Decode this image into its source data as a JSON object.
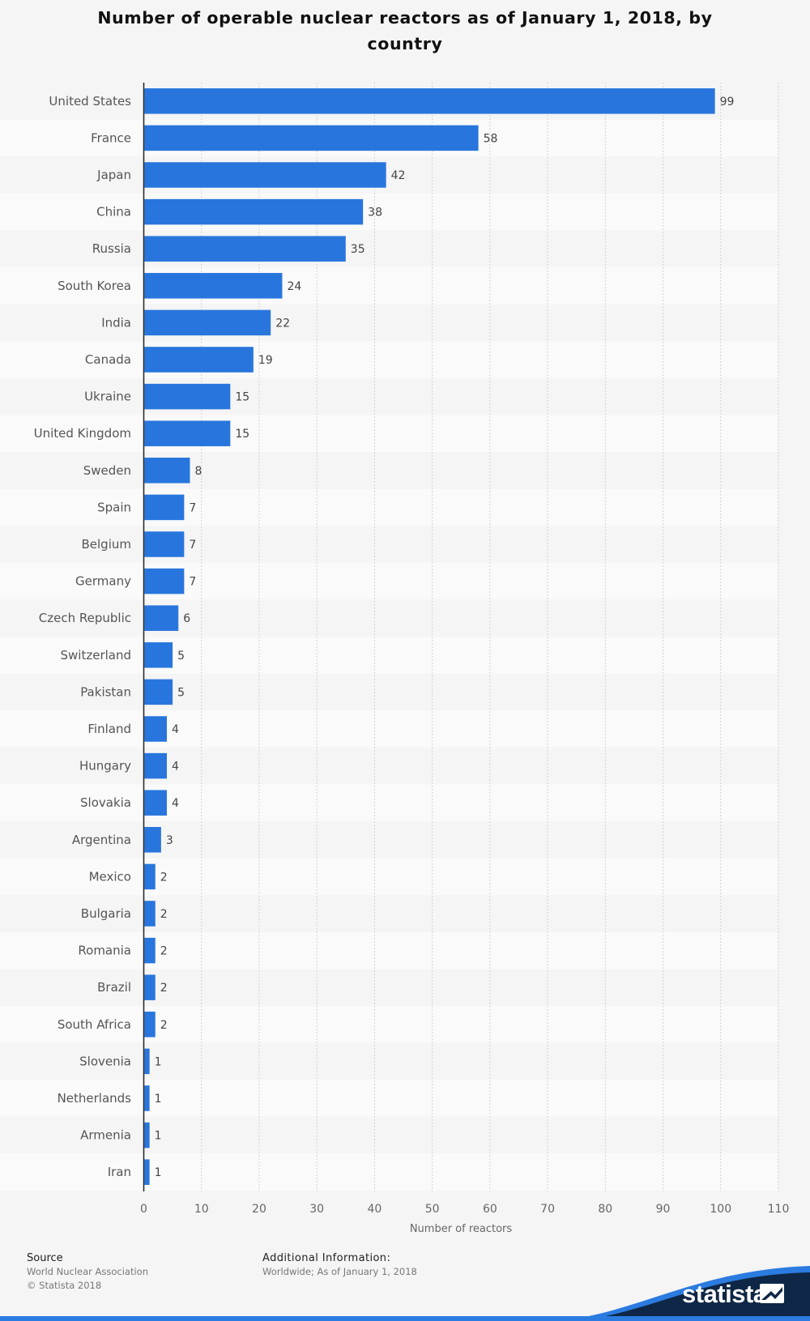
{
  "chart_data": {
    "type": "bar",
    "orientation": "horizontal",
    "title": "Number of operable nuclear reactors as of January 1, 2018, by country",
    "xlabel": "Number of reactors",
    "ylabel": "",
    "xlim": [
      0,
      110
    ],
    "xticks": [
      "0",
      "10",
      "20",
      "30",
      "40",
      "50",
      "60",
      "70",
      "80",
      "90",
      "100",
      "110"
    ],
    "grid": "vertical-dashed",
    "categories": [
      "United States",
      "France",
      "Japan",
      "China",
      "Russia",
      "South Korea",
      "India",
      "Canada",
      "Ukraine",
      "United Kingdom",
      "Sweden",
      "Spain",
      "Belgium",
      "Germany",
      "Czech Republic",
      "Switzerland",
      "Pakistan",
      "Finland",
      "Hungary",
      "Slovakia",
      "Argentina",
      "Mexico",
      "Bulgaria",
      "Romania",
      "Brazil",
      "South Africa",
      "Slovenia",
      "Netherlands",
      "Armenia",
      "Iran"
    ],
    "values": [
      99,
      58,
      42,
      38,
      35,
      24,
      22,
      19,
      15,
      15,
      8,
      7,
      7,
      7,
      6,
      5,
      5,
      4,
      4,
      4,
      3,
      2,
      2,
      2,
      2,
      2,
      1,
      1,
      1,
      1
    ],
    "bar_color": "#2876dd",
    "data_labels": true
  },
  "footer": {
    "source_heading": "Source",
    "source_name": "World Nuclear Association",
    "copyright": "© Statista 2018",
    "info_heading": "Additional Information:",
    "info_text": "Worldwide; As of January 1, 2018"
  },
  "brand": {
    "logo_text": "statista",
    "logo_icon": "statista-logo-icon",
    "wave_color_dark": "#0f2746",
    "wave_color_accent": "#2b7be0"
  }
}
